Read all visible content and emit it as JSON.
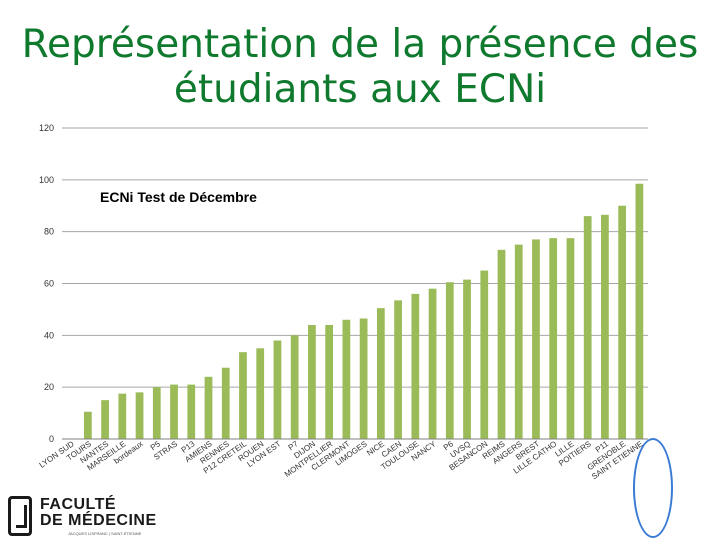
{
  "slide": {
    "title_line1": "Représentation de la présence des",
    "title_line2": "étudiants aux ECNi",
    "logo_line1": "FACULTÉ",
    "logo_line2": "DE MÉDECINE",
    "logo_line3": "JACQUES LISFRANC | SAINT-ÉTIENNE"
  },
  "colors": {
    "bar": "#9bbb59",
    "title": "#0f7a2e",
    "grid": "#a6a6a6"
  },
  "chart_data": {
    "type": "bar",
    "title": "ECNi Test de Décembre",
    "xlabel": "",
    "ylabel": "",
    "ylim": [
      0,
      120
    ],
    "yticks": [
      0,
      20,
      40,
      60,
      80,
      100,
      120
    ],
    "grid": true,
    "categories": [
      "LYON SUD",
      "TOURS",
      "NANTES",
      "MARSEILLE",
      "bordeaux",
      "P5",
      "STRAS",
      "P13",
      "AMIENS",
      "RENNES",
      "P12 CRETEIL",
      "ROUEN",
      "LYON EST",
      "P7",
      "DIJON",
      "MONTPELLIER",
      "CLERMONT",
      "LIMOGES",
      "NICE",
      "CAEN",
      "TOULOUSE",
      "NANCY",
      "P6",
      "UVSQ",
      "BESANCON",
      "REIMS",
      "ANGERS",
      "BREST",
      "LILLE CATHO",
      "LILLE",
      "POITIERS",
      "P11",
      "GRENOBLE",
      "SAINT ETIENNE"
    ],
    "values": [
      0,
      10.5,
      15,
      17.5,
      18,
      20,
      21,
      21,
      24,
      27.5,
      33.5,
      35,
      38,
      40,
      44,
      44,
      46,
      46.5,
      50.5,
      53.5,
      56,
      58,
      60.5,
      61.5,
      65,
      73,
      75,
      77,
      77.5,
      77.5,
      86,
      86.5,
      90,
      98.5
    ]
  }
}
